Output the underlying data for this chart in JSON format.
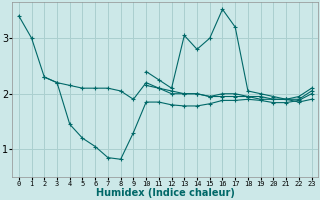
{
  "xlabel": "Humidex (Indice chaleur)",
  "background_color": "#cce8e8",
  "grid_color": "#aacfcf",
  "line_color": "#006868",
  "x_ticks": [
    0,
    1,
    2,
    3,
    4,
    5,
    6,
    7,
    8,
    9,
    10,
    11,
    12,
    13,
    14,
    15,
    16,
    17,
    18,
    19,
    20,
    21,
    22,
    23
  ],
  "y_ticks": [
    1,
    2,
    3
  ],
  "ylim": [
    0.5,
    3.65
  ],
  "xlim": [
    -0.5,
    23.5
  ],
  "series": [
    [
      3.4,
      3.0,
      2.3,
      2.2,
      2.15,
      2.1,
      2.1,
      2.1,
      2.05,
      1.9,
      2.2,
      2.1,
      2.0,
      2.0,
      2.0,
      1.95,
      1.95,
      1.95,
      1.95,
      1.9,
      1.9,
      1.9,
      1.95,
      2.1
    ],
    [
      null,
      null,
      2.3,
      2.2,
      1.45,
      1.2,
      1.05,
      0.85,
      0.82,
      1.3,
      1.85,
      1.85,
      1.8,
      1.78,
      1.78,
      1.82,
      1.88,
      1.88,
      1.9,
      1.88,
      1.84,
      1.84,
      1.88,
      2.0
    ],
    [
      null,
      null,
      null,
      null,
      null,
      null,
      null,
      null,
      null,
      null,
      2.4,
      2.25,
      2.1,
      3.05,
      2.8,
      3.0,
      3.52,
      3.2,
      2.05,
      2.0,
      1.95,
      1.9,
      1.85,
      1.9
    ],
    [
      null,
      null,
      null,
      null,
      null,
      null,
      null,
      null,
      null,
      null,
      2.15,
      2.1,
      2.05,
      2.0,
      2.0,
      1.95,
      2.0,
      2.0,
      1.95,
      1.95,
      1.9,
      1.9,
      1.9,
      2.05
    ]
  ],
  "xlabel_fontsize": 7,
  "xtick_fontsize": 5,
  "ytick_fontsize": 7
}
